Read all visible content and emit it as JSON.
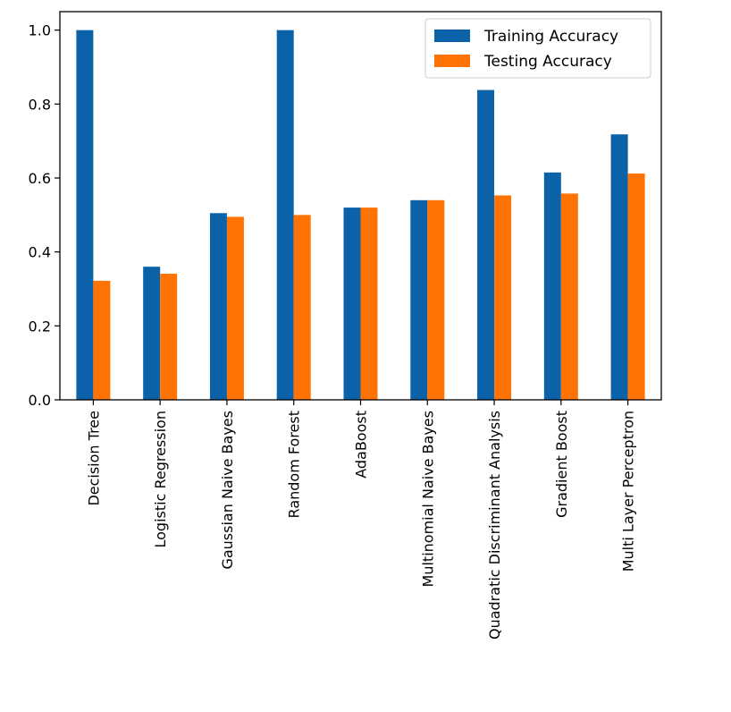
{
  "chart_data": {
    "type": "bar",
    "categories": [
      "Decision Tree",
      "Logistic Regression",
      "Gaussian Naive Bayes",
      "Random Forest",
      "AdaBoost",
      "Multinomial Naive Bayes",
      "Quadratic Discriminant Analysis",
      "Gradient Boost",
      "Multi Layer Perceptron"
    ],
    "series": [
      {
        "name": "Training Accuracy",
        "color": "#0b62a8",
        "values": [
          1.0,
          0.36,
          0.505,
          1.0,
          0.52,
          0.54,
          0.838,
          0.615,
          0.718
        ]
      },
      {
        "name": "Testing Accuracy",
        "color": "#ff7305",
        "values": [
          0.322,
          0.341,
          0.495,
          0.5,
          0.52,
          0.54,
          0.553,
          0.558,
          0.612
        ]
      }
    ],
    "ylim": [
      0,
      1.05
    ],
    "yticks": [
      0.0,
      0.2,
      0.4,
      0.6,
      0.8,
      1.0
    ],
    "ytick_labels": [
      "0.0",
      "0.2",
      "0.4",
      "0.6",
      "0.8",
      "1.0"
    ],
    "legend_position": "top-right",
    "grid": false,
    "title": "",
    "xlabel": "",
    "ylabel": ""
  }
}
